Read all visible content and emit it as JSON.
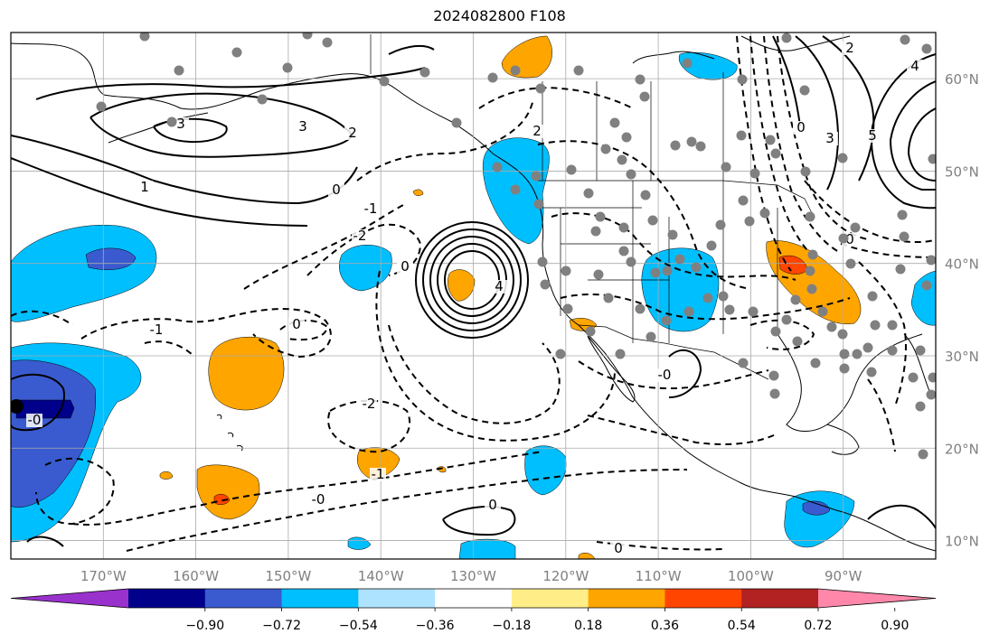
{
  "title": "2024082800 F108",
  "map": {
    "lon_range": [
      -180,
      -80
    ],
    "lat_range": [
      8,
      65
    ],
    "lon_ticks": [
      "170°W",
      "160°W",
      "150°W",
      "140°W",
      "130°W",
      "120°W",
      "110°W",
      "100°W",
      "90°W"
    ],
    "lat_ticks": [
      "60°N",
      "50°N",
      "40°N",
      "30°N",
      "20°N",
      "10°N"
    ],
    "gridlines": true,
    "contour_labels": [
      "3",
      "2",
      "1",
      "0",
      "-1",
      "-2",
      "0",
      "-1",
      "-2",
      "-0",
      "-1",
      "-0",
      "2",
      "3",
      "4",
      "0",
      "0",
      "0",
      "3",
      "5",
      "4",
      "2",
      "0",
      "0",
      "-0"
    ],
    "station_color": "#808080"
  },
  "colorbar": {
    "colors": [
      "#9932cc",
      "#00008b",
      "#3a5bcf",
      "#00bfff",
      "#aee3ff",
      "#ffffff",
      "#ffee88",
      "#ffa500",
      "#ff4500",
      "#b22222",
      "#ff88aa"
    ],
    "tick_labels": [
      "−0.90",
      "−0.72",
      "−0.54",
      "−0.36",
      "−0.18",
      "0.18",
      "0.36",
      "0.54",
      "0.72",
      "0.90"
    ]
  }
}
